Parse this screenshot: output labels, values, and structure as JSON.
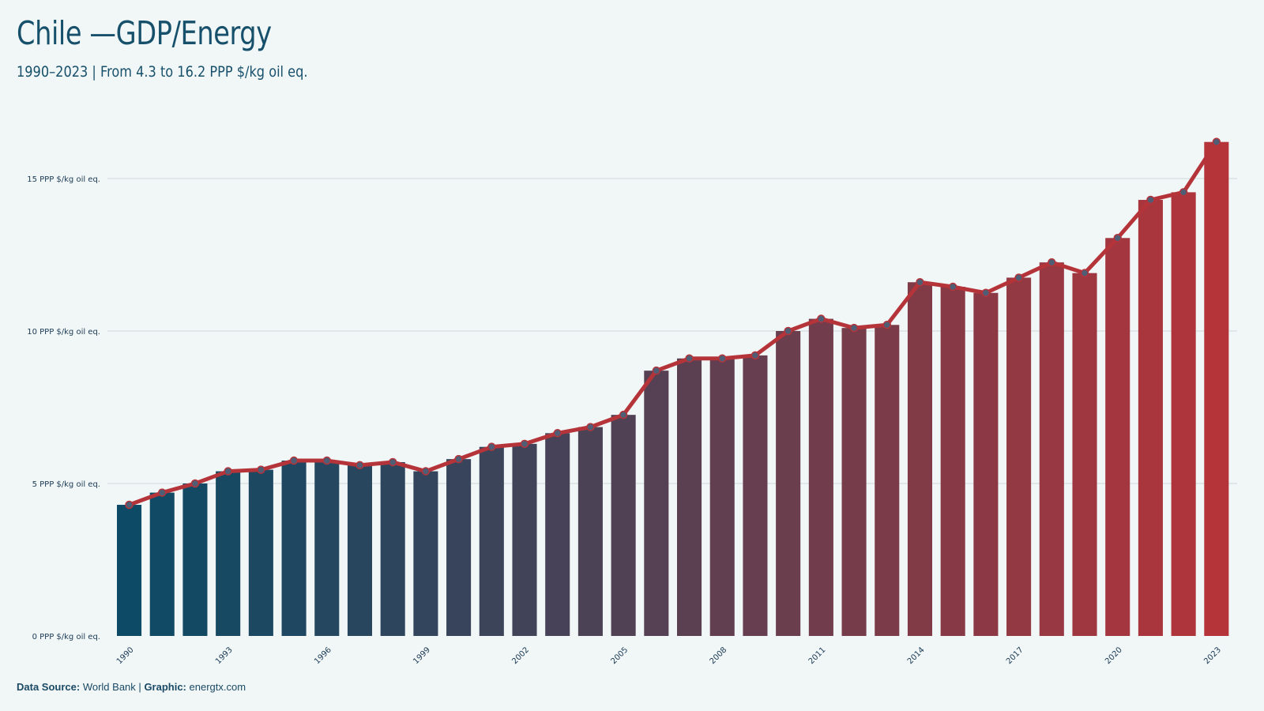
{
  "header": {
    "title": "Chile —GDP/Energy",
    "subtitle": "1990–2023 | From 4.3 to 16.2 PPP $/kg oil eq."
  },
  "footer": {
    "source_label": "Data Source:",
    "source_value": "World Bank",
    "separator": "|",
    "graphic_label": "Graphic:",
    "graphic_value": "energtx.com"
  },
  "colors": {
    "bar_start": "#0d4a66",
    "bar_end": "#b5343a",
    "line": "#b5343a",
    "marker_fill": "#4f5d75",
    "grid": "#d0d8da",
    "background": "#f1f6f6"
  },
  "chart_data": {
    "type": "bar",
    "title": "Chile —GDP/Energy",
    "subtitle": "1990–2023 | From 4.3 to 16.2 PPP $/kg oil eq.",
    "ylim": [
      0,
      17
    ],
    "y_ticks": [
      0,
      5,
      10,
      15
    ],
    "y_tick_labels": [
      "0 PPP $/kg oil eq.",
      "5 PPP $/kg oil eq.",
      "10 PPP $/kg oil eq.",
      "15 PPP $/kg oil eq."
    ],
    "x_tick_labels": [
      "1990",
      "1993",
      "1996",
      "1999",
      "2002",
      "2005",
      "2008",
      "2011",
      "2014",
      "2017",
      "2020",
      "2023"
    ],
    "grid": true,
    "overlay": "line-with-markers",
    "categories": [
      "1990",
      "1991",
      "1992",
      "1993",
      "1994",
      "1995",
      "1996",
      "1997",
      "1998",
      "1999",
      "2000",
      "2001",
      "2002",
      "2003",
      "2004",
      "2005",
      "2006",
      "2007",
      "2008",
      "2009",
      "2010",
      "2011",
      "2012",
      "2013",
      "2014",
      "2015",
      "2016",
      "2017",
      "2018",
      "2019",
      "2020",
      "2021",
      "2022",
      "2023"
    ],
    "values": [
      4.3,
      4.7,
      5.0,
      5.4,
      5.45,
      5.75,
      5.75,
      5.6,
      5.7,
      5.4,
      5.8,
      6.2,
      6.3,
      6.65,
      6.85,
      7.25,
      8.7,
      9.1,
      9.1,
      9.2,
      10.0,
      10.4,
      10.1,
      10.2,
      11.6,
      11.45,
      11.25,
      11.75,
      12.25,
      11.9,
      13.05,
      14.3,
      14.55,
      16.2
    ]
  }
}
